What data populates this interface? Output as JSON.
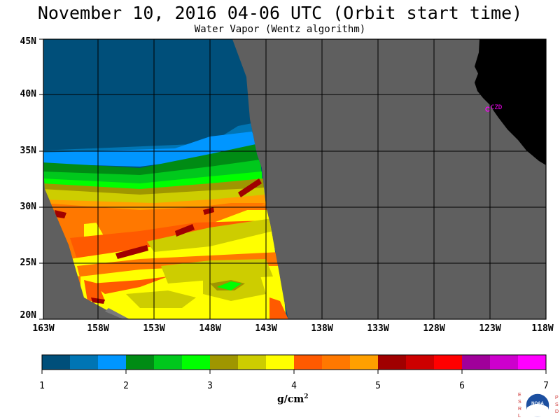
{
  "title": "November 10, 2016  04-06 UTC  (Orbit start time)",
  "subtitle": "Water Vapor (Wentz algorithm)",
  "map": {
    "lat_labels": [
      "45N",
      "40N",
      "35N",
      "30N",
      "25N",
      "20N"
    ],
    "lon_labels": [
      "163W",
      "158W",
      "153W",
      "148W",
      "143W",
      "138W",
      "133W",
      "128W",
      "123W",
      "118W"
    ],
    "station_label": "CZD",
    "colors": {
      "ocean_nodata": "#5f5f5f",
      "land": "#000000",
      "grid": "#000000",
      "station": "#ff00ff"
    }
  },
  "colorbar": {
    "ticks": [
      "1",
      "2",
      "3",
      "4",
      "5",
      "6",
      "7"
    ],
    "colors": [
      "#004f7a",
      "#0075b4",
      "#0096ff",
      "#008b14",
      "#00c81c",
      "#00ff00",
      "#9f9600",
      "#cdcd00",
      "#ffff00",
      "#ff5a00",
      "#ff7800",
      "#ffa000",
      "#a00000",
      "#cd0000",
      "#ff0000",
      "#a0009a",
      "#cd00cd",
      "#ff00ff"
    ],
    "units": "g/cm",
    "units_sup": "2"
  },
  "logo": {
    "left_letters": "ESRL",
    "right_letters": "PSD",
    "center": "NOAA"
  }
}
